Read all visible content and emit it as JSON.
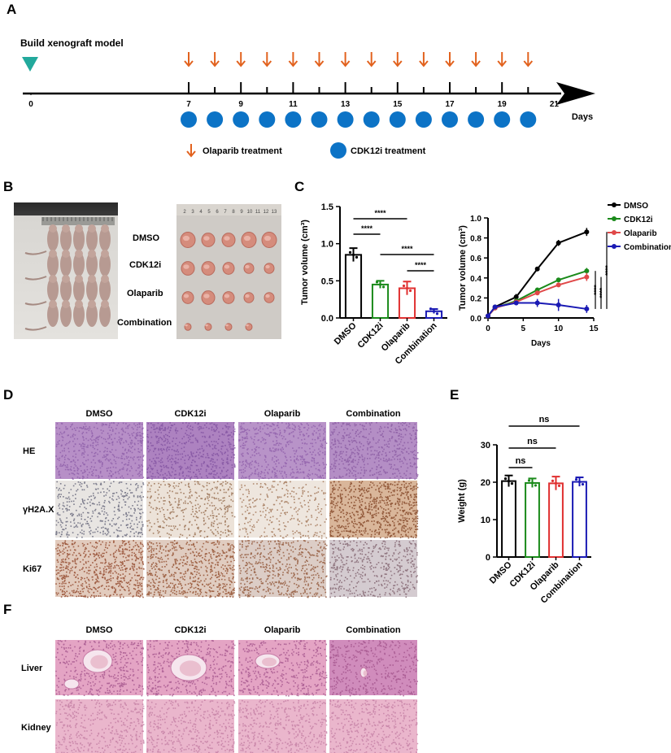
{
  "panels": {
    "A": "A",
    "B": "B",
    "C": "C",
    "D": "D",
    "E": "E",
    "F": "F"
  },
  "timeline": {
    "build_label": "Build xenograft model",
    "ticks": [
      "0",
      "7",
      "9",
      "11",
      "13",
      "15",
      "17",
      "19",
      "21"
    ],
    "days_label": "Days",
    "legend_olaparib": "Olaparib treatment",
    "legend_cdk12i": "CDK12i treatment",
    "colors": {
      "arrow": "#e2621e",
      "circle": "#0c73c6",
      "triangle": "#22a99c"
    }
  },
  "panel_b": {
    "groups": [
      "DMSO",
      "CDK12i",
      "Olaparib",
      "Combination"
    ]
  },
  "chart_data": [
    {
      "id": "C-bar",
      "type": "bar",
      "categories": [
        "DMSO",
        "CDK12i",
        "Olaparib",
        "Combination"
      ],
      "values": [
        0.85,
        0.45,
        0.4,
        0.09
      ],
      "errors": [
        0.09,
        0.05,
        0.09,
        0.03
      ],
      "colors": [
        "#000000",
        "#1a8a1a",
        "#e03030",
        "#1a1ab4"
      ],
      "ylabel": "Tumor volume (cm³)",
      "ylim": [
        0,
        1.5
      ],
      "yticks": [
        "0.0",
        "0.5",
        "1.0",
        "1.5"
      ],
      "significance": [
        "****",
        "****",
        "****",
        "****"
      ]
    },
    {
      "id": "C-line",
      "type": "line",
      "x": [
        0,
        1,
        4,
        7,
        10,
        14
      ],
      "xticks": [
        "0",
        "5",
        "10",
        "15"
      ],
      "xlabel": "Days",
      "ylabel": "Tumor volume (cm³)",
      "ylim": [
        0,
        1.0
      ],
      "yticks": [
        "0.0",
        "0.2",
        "0.4",
        "0.6",
        "0.8",
        "1.0"
      ],
      "series": [
        {
          "name": "DMSO",
          "color": "#000000",
          "values": [
            0.02,
            0.11,
            0.21,
            0.49,
            0.75,
            0.86
          ],
          "errors": [
            0,
            0.02,
            0.03,
            0.02,
            0.03,
            0.04
          ]
        },
        {
          "name": "CDK12i",
          "color": "#1a8a1a",
          "values": [
            0.02,
            0.1,
            0.17,
            0.28,
            0.38,
            0.47
          ],
          "errors": [
            0,
            0.02,
            0.02,
            0.02,
            0.02,
            0.03
          ]
        },
        {
          "name": "Olaparib",
          "color": "#e04848",
          "values": [
            0.02,
            0.1,
            0.16,
            0.25,
            0.33,
            0.41
          ],
          "errors": [
            0,
            0.02,
            0.02,
            0.02,
            0.02,
            0.04
          ]
        },
        {
          "name": "Combination",
          "color": "#1a1ab4",
          "values": [
            0.02,
            0.11,
            0.15,
            0.15,
            0.13,
            0.09
          ],
          "errors": [
            0,
            0.02,
            0.02,
            0.04,
            0.06,
            0.04
          ]
        }
      ],
      "significance": [
        "****",
        "****",
        "****"
      ]
    },
    {
      "id": "E-bar",
      "type": "bar",
      "categories": [
        "DMSO",
        "CDK12i",
        "Olaparib",
        "Combination"
      ],
      "values": [
        20.3,
        19.8,
        19.7,
        20.1
      ],
      "errors": [
        1.5,
        1.2,
        1.8,
        1.2
      ],
      "colors": [
        "#000000",
        "#1a8a1a",
        "#e03030",
        "#1a1ab4"
      ],
      "ylabel": "Weight (g)",
      "ylim": [
        0,
        30
      ],
      "yticks": [
        "0",
        "10",
        "20",
        "30"
      ],
      "significance": [
        "ns",
        "ns",
        "ns"
      ]
    }
  ],
  "panel_d": {
    "cols": [
      "DMSO",
      "CDK12i",
      "Olaparib",
      "Combination"
    ],
    "rows": [
      "HE",
      "γH2A.X",
      "Ki67"
    ]
  },
  "panel_f": {
    "cols": [
      "DMSO",
      "CDK12i",
      "Olaparib",
      "Combination"
    ],
    "rows": [
      "Liver",
      "Kidney"
    ]
  }
}
